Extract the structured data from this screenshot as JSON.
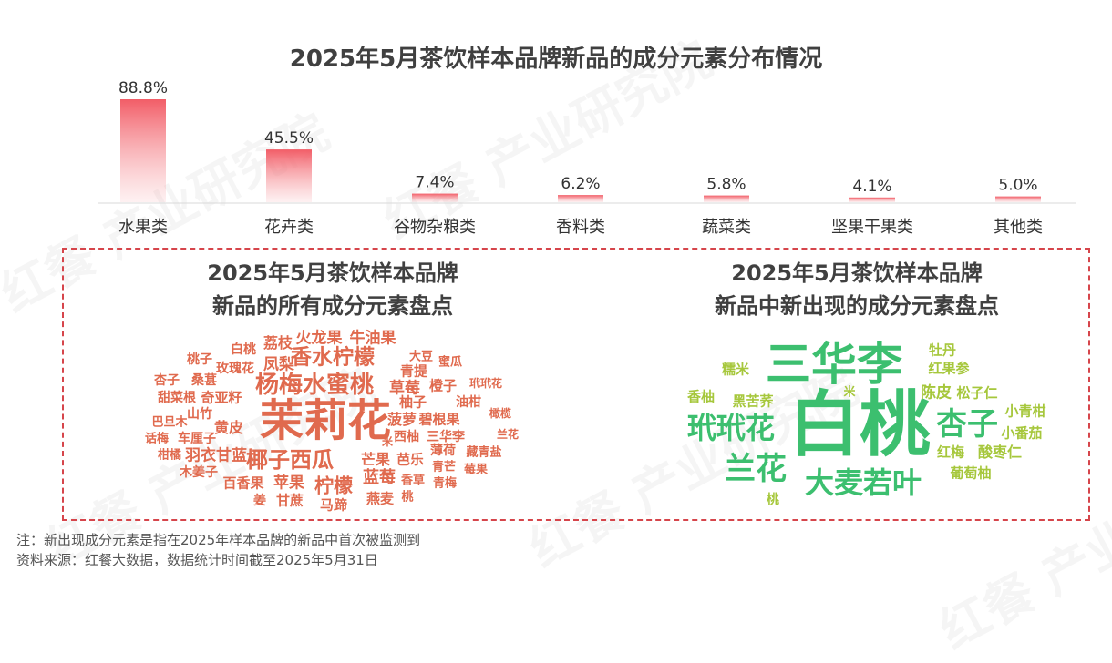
{
  "chart_data": {
    "type": "bar",
    "title": "2025年5月茶饮样本品牌新品的成分元素分布情况",
    "categories": [
      "水果类",
      "花卉类",
      "谷物杂粮类",
      "香料类",
      "蔬菜类",
      "坚果干果类",
      "其他类"
    ],
    "values": [
      88.8,
      45.5,
      7.4,
      6.2,
      5.8,
      4.1,
      5.0
    ],
    "value_labels": [
      "88.8%",
      "45.5%",
      "7.4%",
      "6.2%",
      "5.8%",
      "4.1%",
      "5.0%"
    ],
    "unit": "%",
    "ylim": [
      0,
      88.8
    ],
    "grid": false,
    "legend": "none",
    "bar_color": "#f25d67"
  },
  "word_clouds": {
    "all": {
      "title_line1": "2025年5月茶饮样本品牌",
      "title_line2": "新品的所有成分元素盘点",
      "color": "#e06a4e",
      "words": [
        "茉莉花",
        "杨梅水蜜桃",
        "香水柠檬",
        "椰子西瓜",
        "火龙果",
        "牛油果",
        "荔枝",
        "凤梨",
        "草莓",
        "柠檬",
        "蓝莓",
        "芒果",
        "苹果",
        "百香果",
        "黄皮",
        "羽衣甘蓝",
        "菠萝",
        "碧根果",
        "西柚",
        "三华李",
        "青提",
        "橙子",
        "柚子",
        "油柑",
        "奇亚籽",
        "甜菜根",
        "杏子",
        "桑葚",
        "桃子",
        "白桃",
        "玫瑰花",
        "山竹",
        "巴旦木",
        "话梅",
        "车厘子",
        "柑橘",
        "木姜子",
        "姜",
        "甘蔗",
        "马蹄",
        "燕麦",
        "芭乐",
        "薄荷",
        "青芒",
        "香草",
        "青梅",
        "莓果",
        "藏青盐",
        "兰花",
        "橄榄",
        "玳玳花",
        "大豆",
        "蜜瓜",
        "米",
        "桃"
      ]
    },
    "new": {
      "title_line1": "2025年5月茶饮样本品牌",
      "title_line2": "新品中新出现的成分元素盘点",
      "colors": [
        "#3cbf6f",
        "#a6c73c"
      ],
      "words": [
        "白桃",
        "三华李",
        "玳玳花",
        "杏子",
        "兰花",
        "大麦若叶",
        "牡丹",
        "红果参",
        "糯米",
        "香柚",
        "黑苦荞",
        "米",
        "陈皮",
        "松子仁",
        "小青柑",
        "小番茄",
        "红梅",
        "酸枣仁",
        "葡萄柚",
        "桃"
      ]
    }
  },
  "footer": {
    "note": "注：新出现成分元素是指在2025年样本品牌的新品中首次被监测到",
    "source": "资料来源：红餐大数据，数据统计时间截至2025年5月31日"
  },
  "watermark": "红餐 产业研究院"
}
